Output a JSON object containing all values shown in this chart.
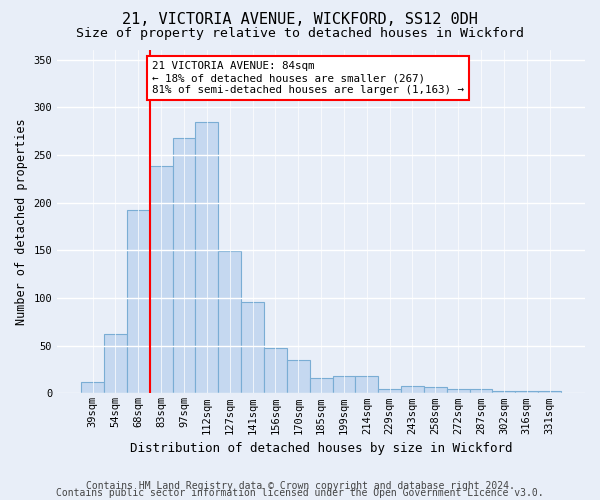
{
  "title1": "21, VICTORIA AVENUE, WICKFORD, SS12 0DH",
  "title2": "Size of property relative to detached houses in Wickford",
  "xlabel": "Distribution of detached houses by size in Wickford",
  "ylabel": "Number of detached properties",
  "categories": [
    "39sqm",
    "54sqm",
    "68sqm",
    "83sqm",
    "97sqm",
    "112sqm",
    "127sqm",
    "141sqm",
    "156sqm",
    "170sqm",
    "185sqm",
    "199sqm",
    "214sqm",
    "229sqm",
    "243sqm",
    "258sqm",
    "272sqm",
    "287sqm",
    "302sqm",
    "316sqm",
    "331sqm"
  ],
  "values": [
    12,
    62,
    192,
    238,
    268,
    285,
    149,
    96,
    48,
    35,
    16,
    18,
    18,
    5,
    8,
    7,
    5,
    5,
    2,
    3,
    2
  ],
  "bar_color": "#c5d8f0",
  "bar_edge_color": "#7aadd4",
  "annotation_text": "21 VICTORIA AVENUE: 84sqm\n← 18% of detached houses are smaller (267)\n81% of semi-detached houses are larger (1,163) →",
  "annotation_box_color": "white",
  "annotation_box_edge_color": "red",
  "vline_color": "red",
  "ylim": [
    0,
    360
  ],
  "yticks": [
    0,
    50,
    100,
    150,
    200,
    250,
    300,
    350
  ],
  "footer1": "Contains HM Land Registry data © Crown copyright and database right 2024.",
  "footer2": "Contains public sector information licensed under the Open Government Licence v3.0.",
  "bg_color": "#e8eef8",
  "grid_color": "#ffffff",
  "title_fontsize": 11,
  "subtitle_fontsize": 9.5,
  "ylabel_fontsize": 8.5,
  "xlabel_fontsize": 9,
  "tick_fontsize": 7.5,
  "annotation_fontsize": 7.8,
  "footer_fontsize": 7,
  "vline_bar_index": 3
}
